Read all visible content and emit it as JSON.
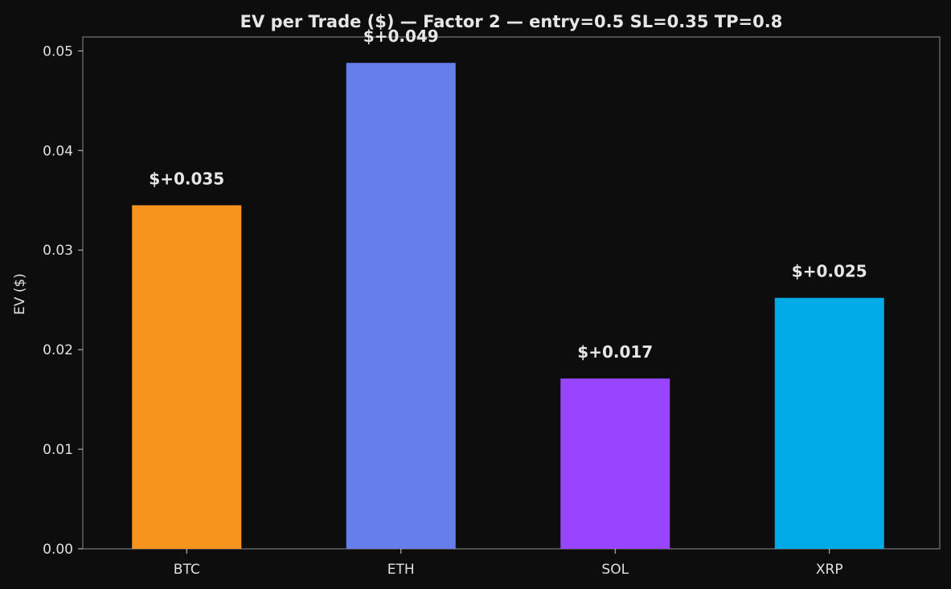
{
  "chart_data": {
    "type": "bar",
    "title": "EV per Trade ($)  —  Factor 2  —  entry=0.5  SL=0.35  TP=0.8",
    "xlabel": "",
    "ylabel": "EV ($)",
    "categories": [
      "BTC",
      "ETH",
      "SOL",
      "XRP"
    ],
    "values": [
      0.0345,
      0.0488,
      0.0171,
      0.0252
    ],
    "data_labels": [
      "$+0.035",
      "$+0.049",
      "$+0.017",
      "$+0.025"
    ],
    "colors": [
      "#f7941d",
      "#667eea",
      "#9945ff",
      "#00aae4"
    ],
    "ylim": [
      0,
      0.0514
    ],
    "yticks": [
      0,
      0.01,
      0.02,
      0.03,
      0.04,
      0.05
    ],
    "ytick_labels": [
      "0.00",
      "0.01",
      "0.02",
      "0.03",
      "0.04",
      "0.05"
    ],
    "grid": false,
    "background": "#0d0d0d",
    "plot_background": "#0d0d0d",
    "axes_color": "#777777"
  }
}
